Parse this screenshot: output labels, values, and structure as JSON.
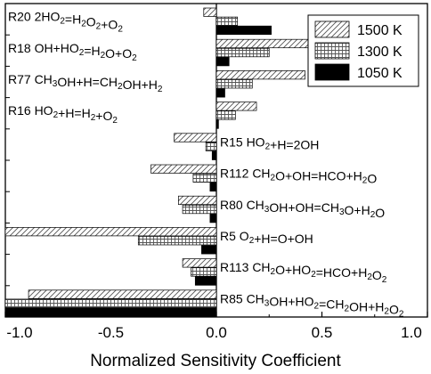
{
  "chart_data": {
    "type": "bar",
    "orientation": "horizontal",
    "xlabel": "Normalized Sensitivity Coefficient",
    "xlim": [
      -1.0,
      1.0
    ],
    "xticks": [
      -1.0,
      -0.5,
      0.0,
      0.5,
      1.0
    ],
    "xtick_labels": [
      "-1.0",
      "-0.5",
      "0.0",
      "0.5",
      "1.0"
    ],
    "legend_position": "top-right",
    "reaction_labels": [
      {
        "id": "R20",
        "parts": [
          [
            "R20 2HO",
            ""
          ],
          [
            "2",
            "sub"
          ],
          [
            "=H",
            ""
          ],
          [
            "2",
            "sub"
          ],
          [
            "O",
            ""
          ],
          [
            "2",
            "sub"
          ],
          [
            "+O",
            ""
          ],
          [
            "2",
            "sub"
          ]
        ]
      },
      {
        "id": "R18",
        "parts": [
          [
            "R18 OH+HO",
            ""
          ],
          [
            "2",
            "sub"
          ],
          [
            "=H",
            ""
          ],
          [
            "2",
            "sub"
          ],
          [
            "O+O",
            ""
          ],
          [
            "2",
            "sub"
          ]
        ]
      },
      {
        "id": "R77",
        "parts": [
          [
            "R77 CH",
            ""
          ],
          [
            "3",
            "sub"
          ],
          [
            "OH+H=CH",
            ""
          ],
          [
            "2",
            "sub"
          ],
          [
            "OH+H",
            ""
          ],
          [
            "2",
            "sub"
          ]
        ]
      },
      {
        "id": "R16",
        "parts": [
          [
            "R16 HO",
            ""
          ],
          [
            "2",
            "sub"
          ],
          [
            "+H=H",
            ""
          ],
          [
            "2",
            "sub"
          ],
          [
            "+O",
            ""
          ],
          [
            "2",
            "sub"
          ]
        ]
      },
      {
        "id": "R15",
        "parts": [
          [
            "R15 HO",
            ""
          ],
          [
            "2",
            "sub"
          ],
          [
            "+H=2OH",
            ""
          ]
        ]
      },
      {
        "id": "R112",
        "parts": [
          [
            "R112 CH",
            ""
          ],
          [
            "2",
            "sub"
          ],
          [
            "O+OH=HCO+H",
            ""
          ],
          [
            "2",
            "sub"
          ],
          [
            "O",
            ""
          ]
        ]
      },
      {
        "id": "R80",
        "parts": [
          [
            "R80 CH",
            ""
          ],
          [
            "3",
            "sub"
          ],
          [
            "OH+OH=CH",
            ""
          ],
          [
            "3",
            "sub"
          ],
          [
            "O+H",
            ""
          ],
          [
            "2",
            "sub"
          ],
          [
            "O",
            ""
          ]
        ]
      },
      {
        "id": "R5",
        "parts": [
          [
            "R5 O",
            ""
          ],
          [
            "2",
            "sub"
          ],
          [
            "+H=O+OH",
            ""
          ]
        ]
      },
      {
        "id": "R113",
        "parts": [
          [
            "R113 CH",
            ""
          ],
          [
            "2",
            "sub"
          ],
          [
            "O+HO",
            ""
          ],
          [
            "2",
            "sub"
          ],
          [
            "=HCO+H",
            ""
          ],
          [
            "2",
            "sub"
          ],
          [
            "O",
            ""
          ],
          [
            "2",
            "sub"
          ]
        ]
      },
      {
        "id": "R85",
        "parts": [
          [
            "R85 CH",
            ""
          ],
          [
            "3",
            "sub"
          ],
          [
            "OH+HO",
            ""
          ],
          [
            "2",
            "sub"
          ],
          [
            "=CH",
            ""
          ],
          [
            "2",
            "sub"
          ],
          [
            "OH+H",
            ""
          ],
          [
            "2",
            "sub"
          ],
          [
            "O",
            ""
          ],
          [
            "2",
            "sub"
          ]
        ]
      }
    ],
    "label_side": [
      "left",
      "left",
      "left",
      "left",
      "right",
      "right",
      "right",
      "right",
      "right",
      "right"
    ],
    "series": [
      {
        "name": "1500 K",
        "pattern": "hatch",
        "values": [
          -0.06,
          0.46,
          0.42,
          0.19,
          -0.2,
          -0.31,
          -0.18,
          -1.0,
          -0.16,
          -0.89
        ]
      },
      {
        "name": "1300 K",
        "pattern": "grid",
        "values": [
          0.1,
          0.25,
          0.17,
          0.09,
          -0.05,
          -0.11,
          -0.16,
          -0.37,
          -0.12,
          -1.0
        ]
      },
      {
        "name": "1050 K",
        "pattern": "solid",
        "values": [
          0.26,
          0.06,
          0.04,
          0.01,
          -0.02,
          -0.03,
          -0.03,
          -0.07,
          -0.1,
          -1.0
        ]
      }
    ]
  }
}
